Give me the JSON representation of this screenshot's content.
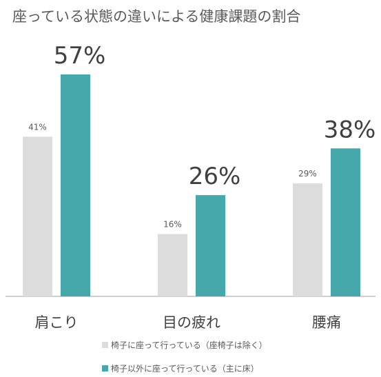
{
  "chart_data": {
    "type": "bar",
    "title": "座っている状態の違いによる健康課題の割合",
    "categories": [
      "肩こり",
      "目の疲れ",
      "腰痛"
    ],
    "series": [
      {
        "name": "椅子に座って行っている（座椅子は除く）",
        "values": [
          41,
          16,
          29
        ],
        "labels": [
          "41%",
          "16%",
          "29%"
        ],
        "color": "#dcdcdc"
      },
      {
        "name": "椅子以外に座って行っている（主に床）",
        "values": [
          57,
          26,
          38
        ],
        "labels": [
          "57%",
          "26%",
          "38%"
        ],
        "color": "#45a9ab"
      }
    ],
    "ylim": [
      0,
      60
    ],
    "grid": false,
    "legend_position": "bottom"
  },
  "colors": {
    "axis": "#bfbfbf",
    "text": "#595959"
  }
}
